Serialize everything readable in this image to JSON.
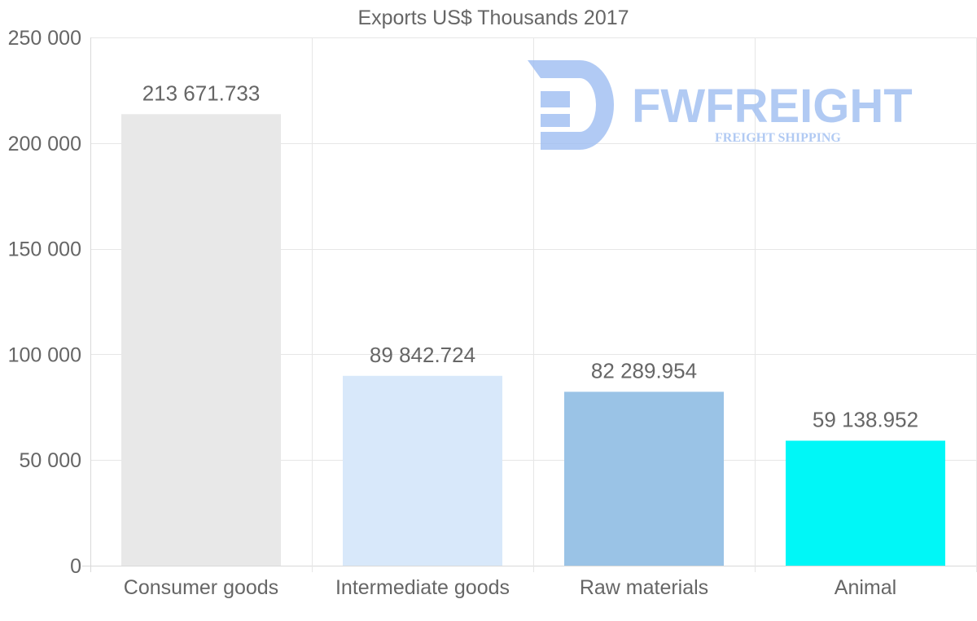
{
  "chart_data": {
    "type": "bar",
    "title": "Exports US$ Thousands 2017",
    "categories": [
      "Consumer goods",
      "Intermediate goods",
      "Raw materials",
      "Animal"
    ],
    "values": [
      213671.733,
      89842.724,
      82289.954,
      59138.952
    ],
    "value_labels": [
      "213 671.733",
      "89 842.724",
      "82 289.954",
      "59 138.952"
    ],
    "bar_colors": [
      "#e8e8e8",
      "#d8e8fa",
      "#9ac3e6",
      "#00f7f7"
    ],
    "ylim": [
      0,
      250000
    ],
    "yticks": [
      0,
      50000,
      100000,
      150000,
      200000,
      250000
    ],
    "ytick_labels": [
      "0",
      "50 000",
      "100 000",
      "150 000",
      "200 000",
      "250 000"
    ],
    "xlabel": "",
    "ylabel": "",
    "grid": true,
    "legend": "none"
  },
  "watermark": {
    "name": "FWFREIGHT",
    "tagline": "FREIGHT SHIPPING",
    "color": "#9ebdf1"
  }
}
